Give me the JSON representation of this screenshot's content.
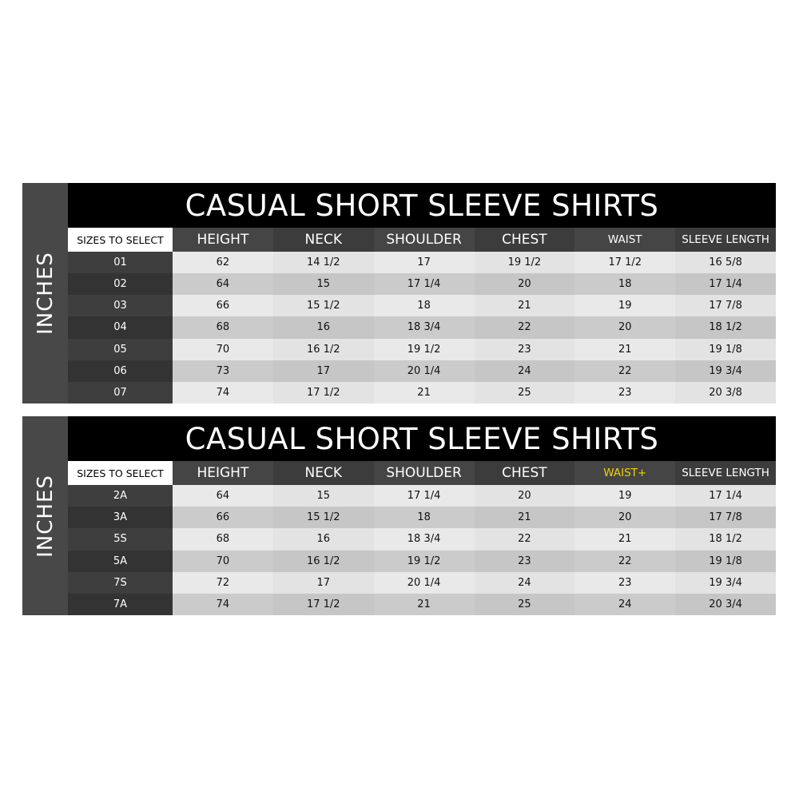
{
  "tables": [
    {
      "title": "CASUAL SHORT SLEEVE SHIRTS",
      "unit_label": "INCHES",
      "headers": [
        "SIZES TO SELECT",
        "HEIGHT",
        "NECK",
        "SHOULDER",
        "CHEST",
        "WAIST",
        "SLEEVE LENGTH"
      ],
      "rows": [
        [
          "01",
          "62",
          "14 1/2",
          "17",
          "19 1/2",
          "17 1/2",
          "16 5/8"
        ],
        [
          "02",
          "64",
          "15",
          "17 1/4",
          "20",
          "18",
          "17 1/4"
        ],
        [
          "03",
          "66",
          "15 1/2",
          "18",
          "21",
          "19",
          "17 7/8"
        ],
        [
          "04",
          "68",
          "16",
          "18 3/4",
          "22",
          "20",
          "18 1/2"
        ],
        [
          "05",
          "70",
          "16 1/2",
          "19 1/2",
          "23",
          "21",
          "19 1/8"
        ],
        [
          "06",
          "73",
          "17",
          "20 1/4",
          "24",
          "22",
          "19 3/4"
        ],
        [
          "07",
          "74",
          "17 1/2",
          "21",
          "25",
          "23",
          "20 3/8"
        ]
      ]
    },
    {
      "title": "CASUAL SHORT SLEEVE SHIRTS",
      "unit_label": "INCHES",
      "headers": [
        "SIZES TO SELECT",
        "HEIGHT",
        "NECK",
        "SHOULDER",
        "CHEST",
        "WAIST+",
        "SLEEVE LENGTH"
      ],
      "highlight_color": "#f2d200",
      "rows": [
        [
          "2A",
          "64",
          "15",
          "17 1/4",
          "20",
          "19",
          "17 1/4"
        ],
        [
          "3A",
          "66",
          "15 1/2",
          "18",
          "21",
          "20",
          "17 7/8"
        ],
        [
          "5S",
          "68",
          "16",
          "18 3/4",
          "22",
          "21",
          "18 1/2"
        ],
        [
          "5A",
          "70",
          "16 1/2",
          "19 1/2",
          "23",
          "22",
          "19 1/8"
        ],
        [
          "7S",
          "72",
          "17",
          "20 1/4",
          "24",
          "23",
          "19 3/4"
        ],
        [
          "7A",
          "74",
          "17 1/2",
          "21",
          "25",
          "24",
          "20 3/4"
        ]
      ]
    }
  ]
}
